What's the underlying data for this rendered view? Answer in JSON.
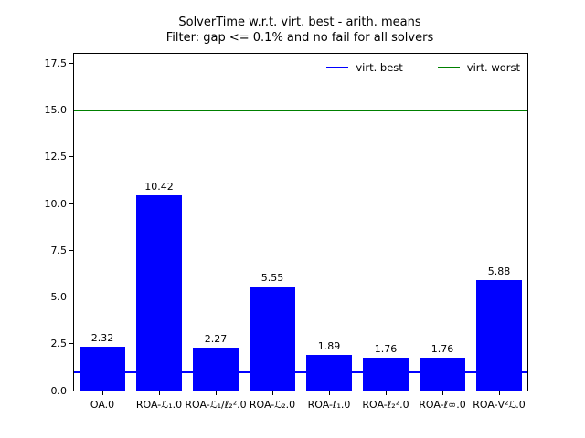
{
  "title": {
    "line1": "SolverTime w.r.t. virt. best - arith. means",
    "line2": "Filter: gap <= 0.1% and no fail for all solvers"
  },
  "legend": {
    "items": [
      {
        "label": "virt. best",
        "color": "#0000ff"
      },
      {
        "label": "virt. worst",
        "color": "#008000"
      }
    ],
    "position": "upper right",
    "columns": 2,
    "frame": false
  },
  "chart_data": {
    "type": "bar",
    "title": "SolverTime w.r.t. virt. best - arith. means\nFilter: gap <= 0.1% and no fail for all solvers",
    "categories": [
      "OA.0",
      "ROA-ℒ₁.0",
      "ROA-ℒ₁/ℓ₂².0",
      "ROA-ℒ₂.0",
      "ROA-ℓ₁.0",
      "ROA-ℓ₂².0",
      "ROA-ℓ∞.0",
      "ROA-∇²ℒ.0"
    ],
    "values": [
      2.32,
      10.42,
      2.27,
      5.55,
      1.89,
      1.76,
      1.76,
      5.88
    ],
    "bar_labels": [
      "2.32",
      "10.42",
      "2.27",
      "5.55",
      "1.89",
      "1.76",
      "1.76",
      "5.88"
    ],
    "bar_color": "#0000ff",
    "xlabel": "",
    "ylabel": "",
    "ylim": [
      0,
      18.0
    ],
    "xlim": [
      -0.5,
      7.5
    ],
    "yticks": [
      0.0,
      2.5,
      5.0,
      7.5,
      10.0,
      12.5,
      15.0,
      17.5
    ],
    "ytick_labels": [
      "0.0",
      "2.5",
      "5.0",
      "7.5",
      "10.0",
      "12.5",
      "15.0",
      "17.5"
    ],
    "hlines": [
      {
        "name": "virt. best",
        "y": 1.0,
        "color": "#0000ff"
      },
      {
        "name": "virt. worst",
        "y": 15.0,
        "color": "#008000"
      }
    ],
    "grid": false,
    "legend_entries": [
      "virt. best",
      "virt. worst"
    ],
    "background": "#ffffff",
    "spine_color": "#000000"
  }
}
